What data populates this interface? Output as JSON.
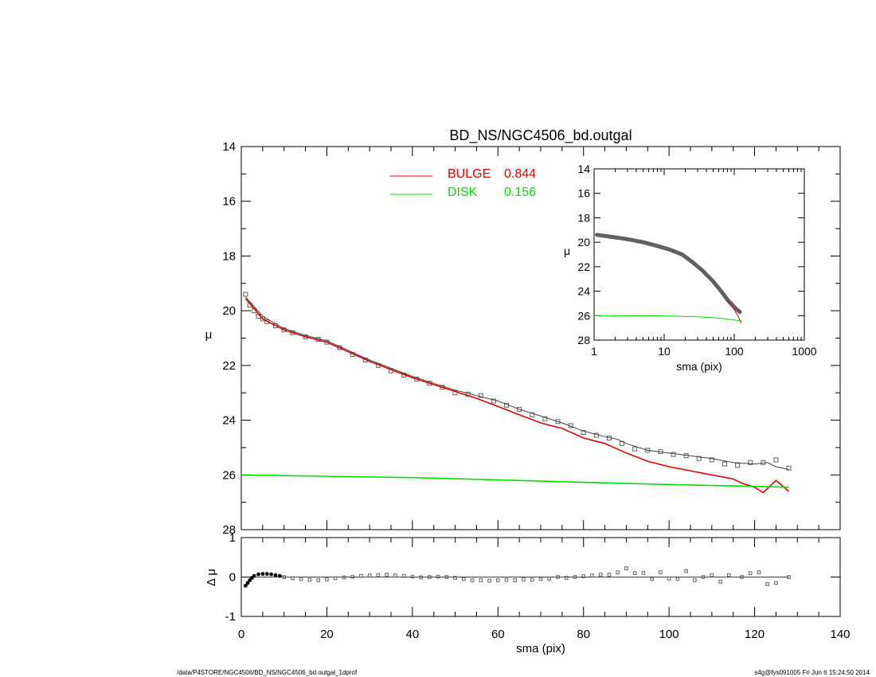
{
  "chart_data": [
    {
      "panel": "main",
      "type": "line",
      "title": "BD_NS/NGC4506_bd.outgal",
      "xlabel": "",
      "ylabel": "μ",
      "xlim": [
        0,
        140
      ],
      "ylim": [
        28,
        14
      ],
      "y_inverted": true,
      "y_ticks": [
        14,
        16,
        18,
        20,
        22,
        24,
        26,
        28
      ],
      "legend_position": "top-center",
      "legend": [
        {
          "label": "BULGE",
          "value": "0.844",
          "color": "#e00000"
        },
        {
          "label": "DISK",
          "value": "0.156",
          "color": "#00e000"
        }
      ],
      "series": [
        {
          "name": "data",
          "style": "markers",
          "color": "#606060",
          "x": [
            1,
            2,
            3,
            4,
            5,
            6,
            8,
            10,
            12,
            15,
            18,
            20,
            23,
            26,
            29,
            32,
            35,
            38,
            41,
            44,
            47,
            50,
            53,
            56,
            59,
            62,
            65,
            68,
            71,
            74,
            77,
            80,
            83,
            86,
            89,
            92,
            95,
            98,
            101,
            104,
            107,
            110,
            113,
            116,
            119,
            122,
            125,
            128
          ],
          "y": [
            19.4,
            19.8,
            20.0,
            20.2,
            20.3,
            20.4,
            20.55,
            20.7,
            20.8,
            20.95,
            21.05,
            21.15,
            21.35,
            21.6,
            21.8,
            22.0,
            22.2,
            22.35,
            22.5,
            22.65,
            22.8,
            23.0,
            23.05,
            23.1,
            23.3,
            23.45,
            23.6,
            23.8,
            23.95,
            24.05,
            24.2,
            24.45,
            24.55,
            24.65,
            24.85,
            25.05,
            25.1,
            25.15,
            25.25,
            25.3,
            25.4,
            25.45,
            25.6,
            25.65,
            25.55,
            25.55,
            25.45,
            25.75
          ]
        },
        {
          "name": "model",
          "style": "line",
          "color": "#404040",
          "x": [
            1,
            5,
            10,
            15,
            20,
            25,
            30,
            35,
            40,
            45,
            50,
            55,
            60,
            65,
            70,
            75,
            80,
            85,
            88,
            90,
            95,
            100,
            105,
            110,
            115,
            120,
            123,
            125,
            128
          ],
          "y": [
            19.5,
            20.2,
            20.65,
            20.9,
            21.1,
            21.45,
            21.8,
            22.1,
            22.4,
            22.65,
            22.9,
            23.1,
            23.3,
            23.6,
            23.85,
            24.1,
            24.4,
            24.6,
            24.7,
            24.85,
            25.1,
            25.2,
            25.3,
            25.4,
            25.55,
            25.6,
            25.55,
            25.7,
            25.8
          ]
        },
        {
          "name": "BULGE",
          "style": "line",
          "color": "#e00000",
          "x": [
            1,
            5,
            10,
            15,
            20,
            25,
            30,
            35,
            40,
            45,
            50,
            55,
            60,
            65,
            70,
            75,
            80,
            85,
            90,
            95,
            100,
            105,
            110,
            115,
            117,
            120,
            122,
            125,
            128
          ],
          "y": [
            19.55,
            20.3,
            20.7,
            20.95,
            21.15,
            21.5,
            21.85,
            22.15,
            22.45,
            22.7,
            22.95,
            23.2,
            23.5,
            23.8,
            24.1,
            24.3,
            24.65,
            24.85,
            25.2,
            25.5,
            25.7,
            25.85,
            26.0,
            26.15,
            26.3,
            26.45,
            26.65,
            26.2,
            26.6
          ]
        },
        {
          "name": "DISK",
          "style": "line",
          "color": "#00e000",
          "x": [
            0,
            20,
            40,
            60,
            80,
            100,
            120,
            128
          ],
          "y": [
            26.0,
            26.05,
            26.1,
            26.18,
            26.27,
            26.35,
            26.42,
            26.45
          ]
        }
      ]
    },
    {
      "panel": "residual",
      "type": "scatter",
      "xlabel": "sma (pix)",
      "ylabel": "Δ μ",
      "xlim": [
        0,
        140
      ],
      "ylim": [
        -1,
        1
      ],
      "x_ticks": [
        0,
        20,
        40,
        60,
        80,
        100,
        120,
        140
      ],
      "y_ticks": [
        -1,
        0,
        1
      ],
      "zero_line": true,
      "series": [
        {
          "name": "residual",
          "style": "markers",
          "color": "#606060",
          "x": [
            1,
            1.5,
            2,
            2.5,
            3,
            4,
            5,
            6,
            7,
            8,
            9,
            10,
            12,
            14,
            16,
            18,
            20,
            22,
            24,
            26,
            28,
            30,
            32,
            34,
            36,
            38,
            40,
            42,
            44,
            46,
            48,
            50,
            52,
            54,
            56,
            58,
            60,
            62,
            64,
            66,
            68,
            70,
            72,
            74,
            76,
            78,
            80,
            82,
            84,
            86,
            88,
            90,
            92,
            94,
            96,
            98,
            100,
            102,
            104,
            106,
            108,
            110,
            112,
            114,
            117,
            119,
            121,
            123,
            125,
            128
          ],
          "y": [
            -0.22,
            -0.15,
            -0.08,
            -0.02,
            0.03,
            0.07,
            0.08,
            0.08,
            0.07,
            0.05,
            0.03,
            0.0,
            -0.03,
            -0.05,
            -0.07,
            -0.08,
            -0.06,
            -0.03,
            -0.01,
            0.01,
            0.03,
            0.04,
            0.05,
            0.06,
            0.04,
            0.03,
            0.01,
            -0.01,
            0.0,
            0.01,
            0.0,
            -0.02,
            -0.05,
            -0.08,
            -0.08,
            -0.09,
            -0.08,
            -0.07,
            -0.08,
            -0.06,
            -0.07,
            -0.05,
            -0.04,
            0.0,
            -0.02,
            0.0,
            0.02,
            0.04,
            0.06,
            0.06,
            0.12,
            0.22,
            0.1,
            0.1,
            -0.05,
            0.12,
            -0.04,
            -0.05,
            0.15,
            -0.08,
            0.0,
            0.05,
            -0.12,
            0.05,
            0.0,
            0.1,
            0.12,
            -0.18,
            -0.15,
            0.0
          ]
        }
      ]
    },
    {
      "panel": "inset",
      "type": "line",
      "xlabel": "sma (pix)",
      "ylabel": "μ",
      "x_scale": "log",
      "xlim": [
        1,
        1000
      ],
      "ylim": [
        28,
        14
      ],
      "y_inverted": true,
      "x_tick_labels": [
        "1",
        "10",
        "100",
        "1000"
      ],
      "y_ticks": [
        14,
        16,
        18,
        20,
        22,
        24,
        26,
        28
      ],
      "series": [
        {
          "name": "data",
          "style": "thick-line",
          "color": "#606060",
          "x": [
            1.1,
            1.5,
            2,
            3,
            5,
            8,
            12,
            18,
            25,
            35,
            50,
            65,
            80,
            100,
            120
          ],
          "y": [
            19.4,
            19.5,
            19.6,
            19.75,
            20.0,
            20.3,
            20.6,
            21.0,
            21.6,
            22.3,
            23.2,
            24.0,
            24.7,
            25.3,
            25.7
          ]
        },
        {
          "name": "BULGE",
          "style": "line",
          "color": "#e00000",
          "x": [
            80,
            100,
            115,
            125
          ],
          "y": [
            24.8,
            25.5,
            26.1,
            26.6
          ]
        },
        {
          "name": "DISK",
          "style": "line",
          "color": "#00e000",
          "x": [
            1,
            10,
            30,
            60,
            100,
            128
          ],
          "y": [
            26.0,
            26.02,
            26.1,
            26.2,
            26.35,
            26.45
          ]
        }
      ]
    }
  ],
  "footer": {
    "left": "/data/P4STORE/NGC4506/BD_NS/NGC4506_bd.outgal_1dprof",
    "right": "s4g@fys091005  Fri Jun  6 15:24:50 2014"
  }
}
